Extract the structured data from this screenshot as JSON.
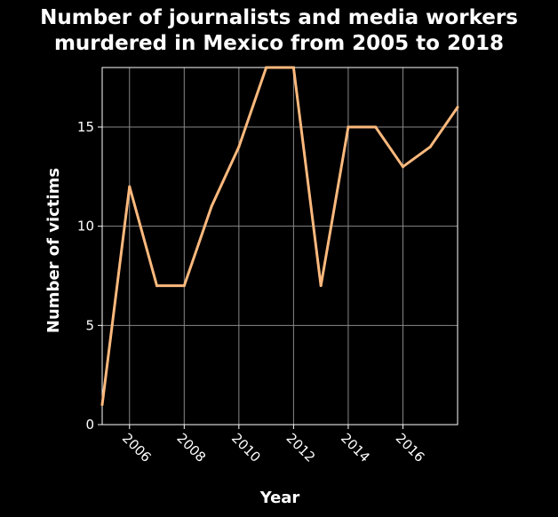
{
  "chart_data": {
    "type": "line",
    "title_lines": [
      "Number of journalists and media workers",
      "murdered in Mexico from 2005 to 2018"
    ],
    "xlabel": "Year",
    "ylabel": "Number of victims",
    "x": [
      2005,
      2006,
      2007,
      2008,
      2009,
      2010,
      2011,
      2012,
      2013,
      2014,
      2015,
      2016,
      2017,
      2018
    ],
    "series": [
      {
        "values": [
          1,
          12,
          7,
          7,
          11,
          14,
          18,
          18,
          7,
          15,
          15,
          13,
          14,
          16
        ]
      }
    ],
    "xlim": [
      2005,
      2018
    ],
    "ylim": [
      0,
      18
    ],
    "xticks": [
      2006,
      2008,
      2010,
      2012,
      2014,
      2016
    ],
    "yticks": [
      0,
      5,
      10,
      15
    ],
    "grid": true,
    "line_color": "#fdb97d",
    "background": "#000000",
    "grid_color": "#888888"
  }
}
